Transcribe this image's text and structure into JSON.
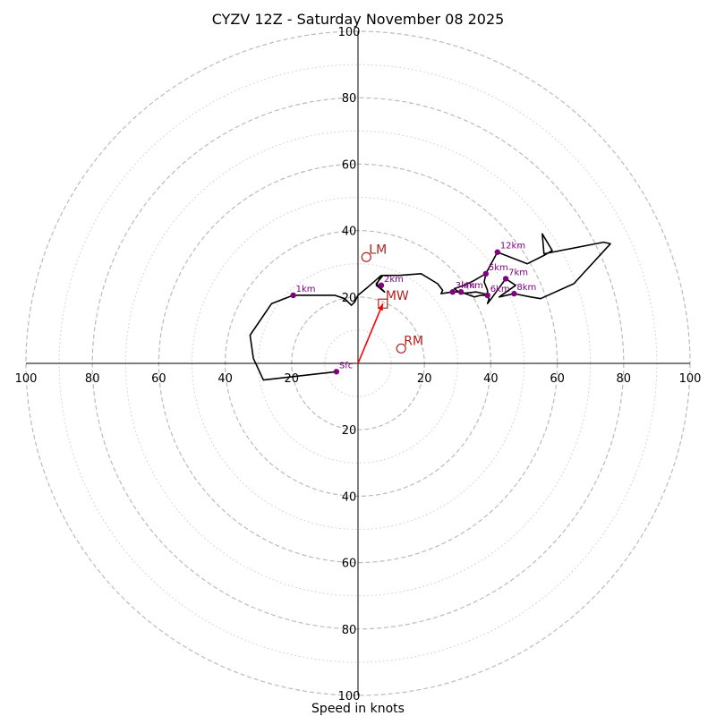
{
  "chart_data": {
    "type": "hodograph",
    "title": "CYZV 12Z - Saturday November 08 2025",
    "xlabel": "Speed in knots",
    "max_speed": 100,
    "major_rings": [
      20,
      40,
      60,
      80,
      100
    ],
    "minor_rings": [
      10,
      30,
      50,
      70,
      90
    ],
    "tick_values": [
      20,
      40,
      60,
      80,
      100
    ],
    "grid": true,
    "colors": {
      "trace": "#000000",
      "height_markers": "#800080",
      "storm_motion": "#b22222",
      "mean_wind_arrow": "#ff0000",
      "grid": "#bbbbbb",
      "axes": "#000000"
    },
    "hodograph_trace": [
      [
        -6.5,
        -2.5
      ],
      [
        -28.5,
        -5
      ],
      [
        -31.5,
        1.5
      ],
      [
        -32.5,
        8.5
      ],
      [
        -26,
        18
      ],
      [
        -19.5,
        20.5
      ],
      [
        -7,
        20.5
      ],
      [
        -4,
        19.5
      ],
      [
        -2,
        17.5
      ],
      [
        -1,
        18.5
      ],
      [
        0,
        20.5
      ],
      [
        3,
        23
      ],
      [
        7,
        26.5
      ],
      [
        5.5,
        23.5
      ],
      [
        8,
        21.5
      ],
      [
        5.5,
        24
      ],
      [
        7.5,
        26.5
      ],
      [
        12.5,
        26.5
      ],
      [
        19,
        27
      ],
      [
        24,
        24
      ],
      [
        25.5,
        22
      ],
      [
        25,
        21
      ],
      [
        28.5,
        21.5
      ],
      [
        31,
        21.5
      ],
      [
        35,
        20
      ],
      [
        37,
        20.5
      ],
      [
        39,
        20.5
      ],
      [
        39,
        22
      ],
      [
        38,
        24.5
      ],
      [
        38.5,
        27
      ],
      [
        42,
        33.5
      ],
      [
        51,
        30
      ],
      [
        56,
        32.5
      ],
      [
        58.5,
        34
      ],
      [
        55.5,
        39
      ],
      [
        56,
        33
      ],
      [
        74,
        36.5
      ],
      [
        76,
        36
      ],
      [
        65,
        24
      ],
      [
        55,
        19.5
      ],
      [
        52,
        20
      ],
      [
        47,
        21
      ],
      [
        42.5,
        20
      ],
      [
        47.5,
        23.5
      ],
      [
        44.5,
        25.5
      ],
      [
        40.5,
        20
      ],
      [
        39,
        18
      ],
      [
        39.5,
        19.5
      ],
      [
        38,
        21
      ],
      [
        35.5,
        21.5
      ],
      [
        31,
        21
      ],
      [
        29,
        22.5
      ],
      [
        32,
        23.5
      ],
      [
        35,
        25
      ],
      [
        38.5,
        27
      ]
    ],
    "height_markers": [
      {
        "label": "Sfc",
        "u": -6.5,
        "v": -2.5
      },
      {
        "label": "1km",
        "u": -19.5,
        "v": 20.5
      },
      {
        "label": "2km",
        "u": 7,
        "v": 23.5
      },
      {
        "label": "3km",
        "u": 28.5,
        "v": 21.5
      },
      {
        "label": "4km",
        "u": 31,
        "v": 21.5
      },
      {
        "label": "5km",
        "u": 38.5,
        "v": 27
      },
      {
        "label": "6km",
        "u": 39,
        "v": 20.5
      },
      {
        "label": "7km",
        "u": 44.5,
        "v": 25.5
      },
      {
        "label": "8km",
        "u": 47,
        "v": 21
      },
      {
        "label": "12km",
        "u": 42,
        "v": 33.5
      }
    ],
    "storm_motions": [
      {
        "label": "LM",
        "u": 2.5,
        "v": 32,
        "marker": "circle"
      },
      {
        "label": "RM",
        "u": 13,
        "v": 4.5,
        "marker": "circle"
      },
      {
        "label": "MW",
        "u": 7.5,
        "v": 18,
        "marker": "square"
      }
    ],
    "mean_wind_vector": {
      "from_u": 0,
      "from_v": 0,
      "to_u": 7.5,
      "to_v": 18
    }
  }
}
